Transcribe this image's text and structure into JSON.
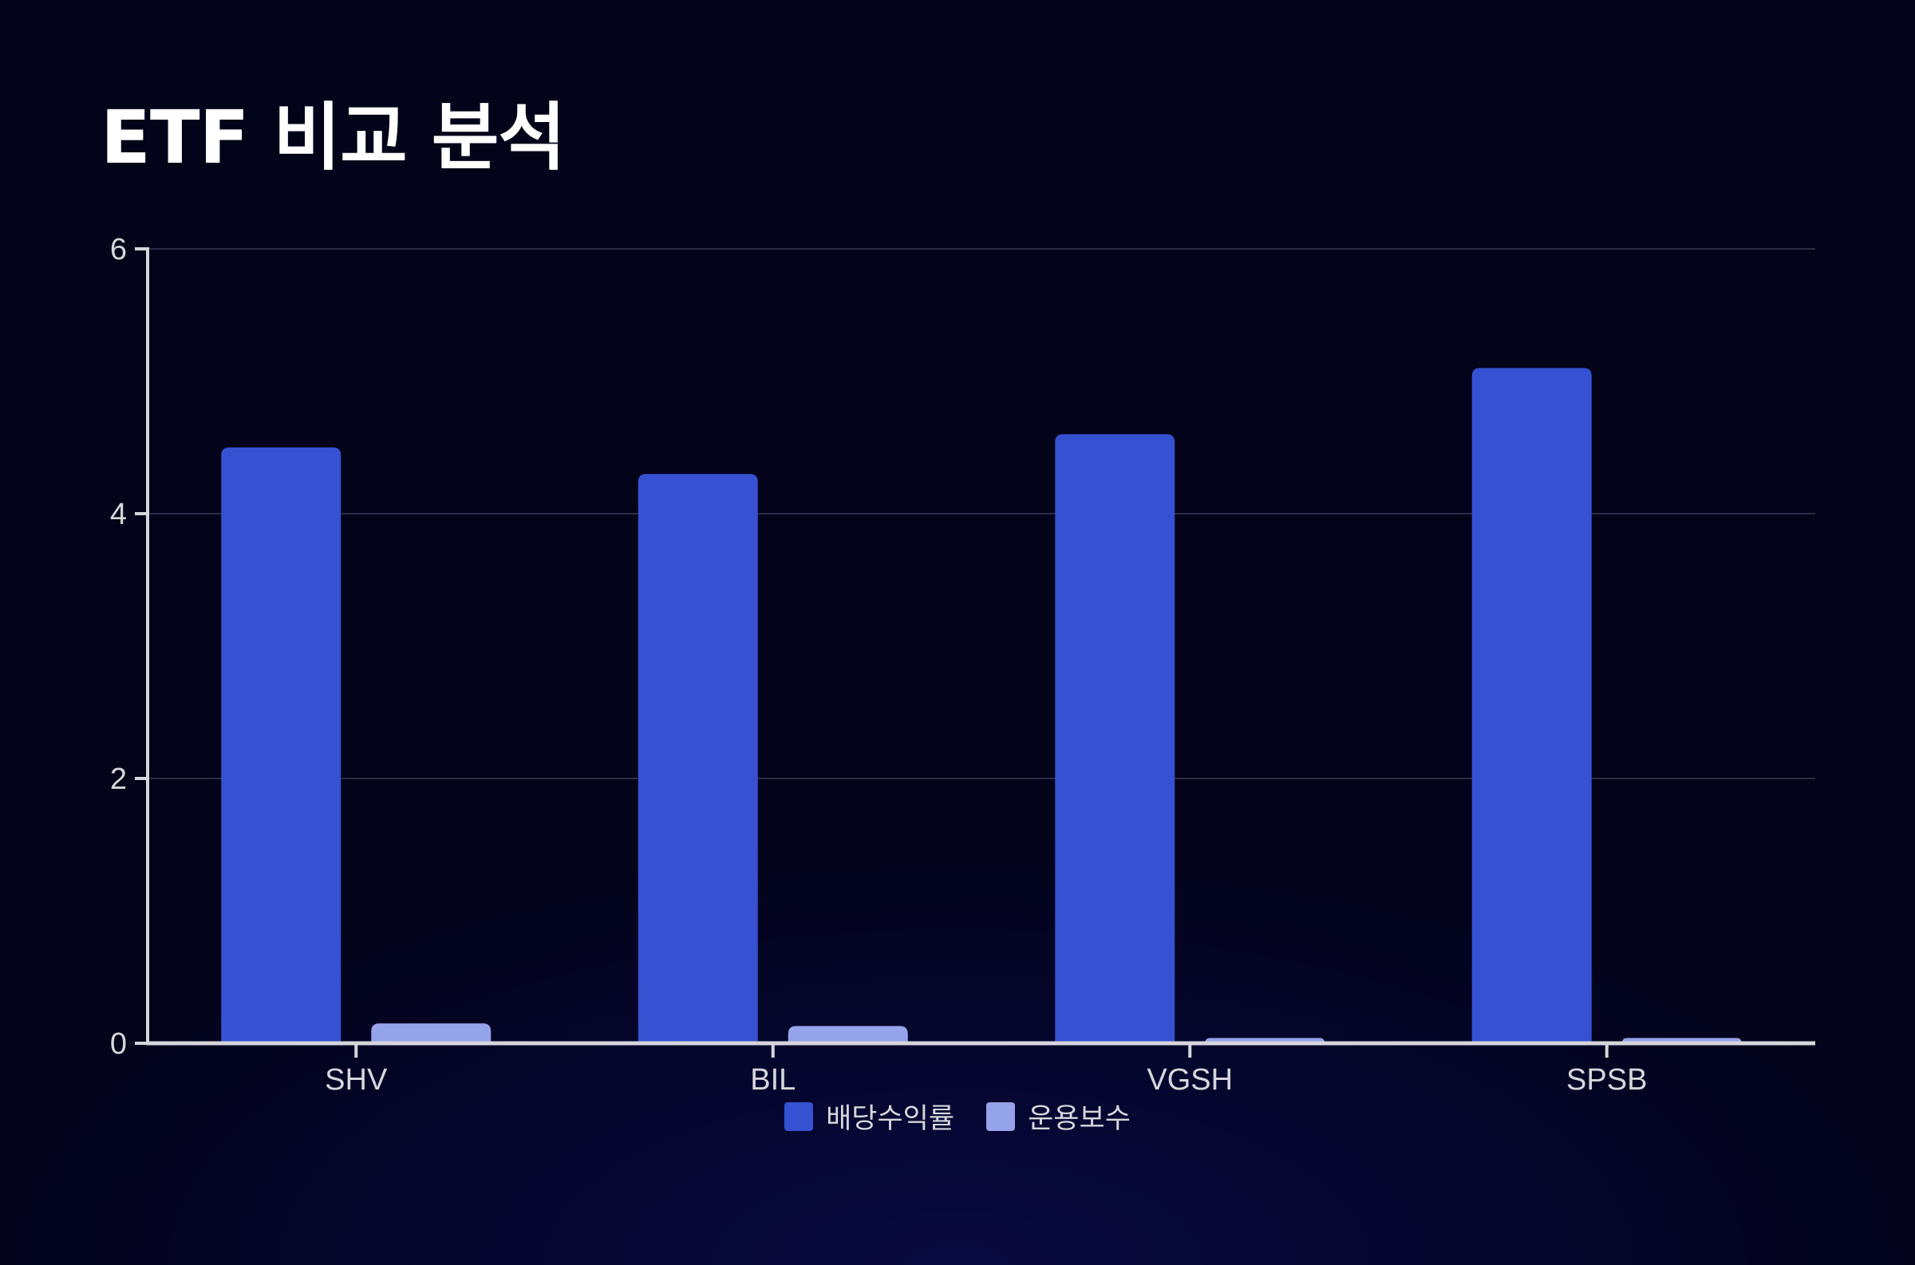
{
  "title": "ETF 비교 분석",
  "chart_data": {
    "type": "bar",
    "categories": [
      "SHV",
      "BIL",
      "VGSH",
      "SPSB"
    ],
    "series": [
      {
        "name": "배당수익률",
        "values": [
          4.5,
          4.3,
          4.6,
          5.1
        ],
        "color": "#3651d1"
      },
      {
        "name": "운용보수",
        "values": [
          0.15,
          0.13,
          0.04,
          0.04
        ],
        "color": "#95a3ea"
      }
    ],
    "ylim": [
      0,
      6
    ],
    "yticks": [
      0,
      2,
      4,
      6
    ],
    "grid": true,
    "legend": "bottom-center",
    "xlabel": "",
    "ylabel": ""
  },
  "colors": {
    "axis": "#d6d6dc",
    "grid": "#2c2d45",
    "text": "#d6d6dc"
  }
}
